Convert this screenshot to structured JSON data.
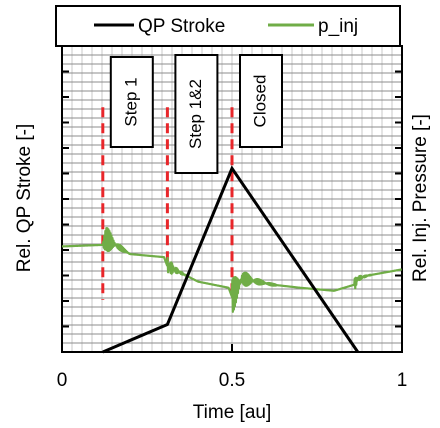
{
  "chart_data": {
    "type": "line",
    "xlabel": "Time [au]",
    "ylabel_left": "Rel. QP Stroke [-]",
    "ylabel_right": "Rel. Inj. Pressure [-]",
    "xlim": [
      0,
      1
    ],
    "ylim": [
      0,
      1
    ],
    "x_ticks": [
      "0",
      "0.5",
      "1"
    ],
    "grid": true,
    "legend_position": "top",
    "series": [
      {
        "name": "QP Stroke",
        "color": "#000000",
        "x": [
          0.12,
          0.31,
          0.5,
          0.87
        ],
        "y": [
          0.0,
          0.09,
          0.6,
          0.0
        ]
      },
      {
        "name": "p_inj",
        "color": "#70ad47",
        "x": [
          0.0,
          0.12,
          0.13,
          0.2,
          0.3,
          0.31,
          0.33,
          0.4,
          0.49,
          0.5,
          0.53,
          0.62,
          0.7,
          0.8,
          0.86,
          0.87,
          0.9,
          1.0
        ],
        "y": [
          0.345,
          0.35,
          0.37,
          0.32,
          0.31,
          0.28,
          0.27,
          0.23,
          0.21,
          0.18,
          0.24,
          0.22,
          0.21,
          0.2,
          0.22,
          0.24,
          0.25,
          0.27
        ]
      }
    ],
    "annotations": [
      {
        "label": "Step 1",
        "x": 0.12,
        "color": "#e8262a"
      },
      {
        "label": "Step 1&2",
        "x": 0.31,
        "color": "#e8262a"
      },
      {
        "label": "Closed",
        "x": 0.5,
        "color": "#e8262a"
      }
    ]
  }
}
